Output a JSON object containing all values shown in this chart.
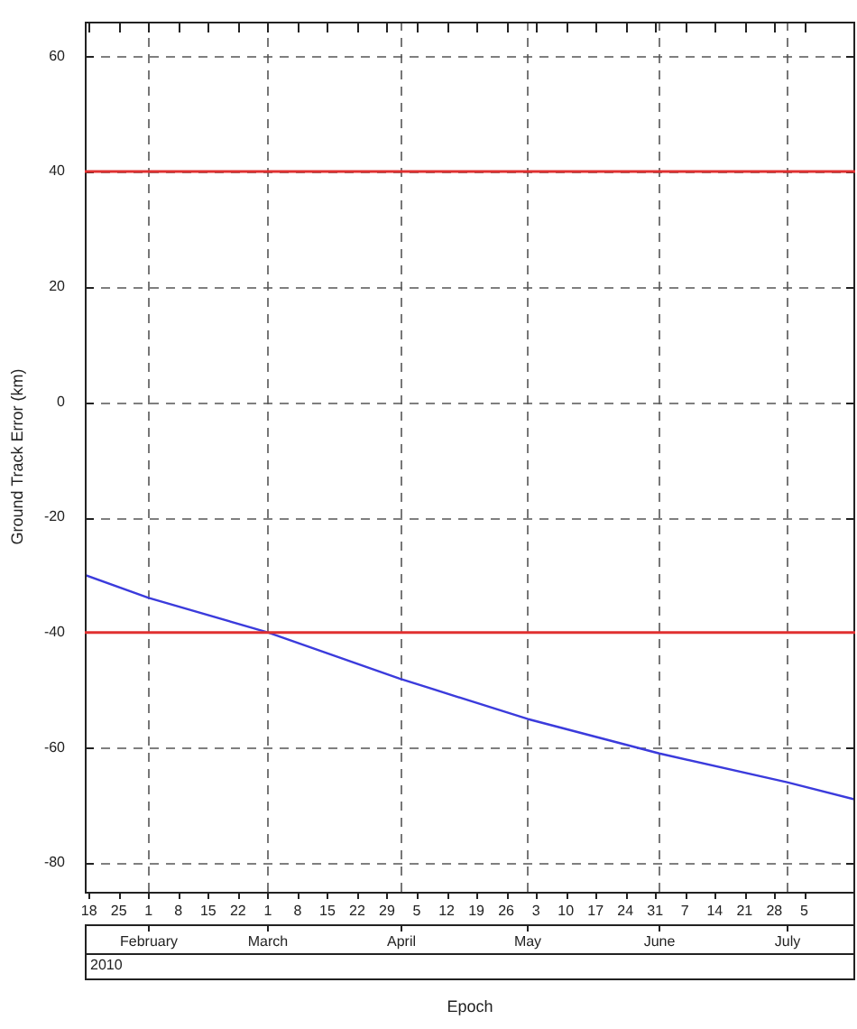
{
  "chart_data": {
    "type": "line",
    "xlabel": "Epoch",
    "ylabel": "Ground Track Error (km)",
    "x": [
      "2010-01-17",
      "2010-02-01",
      "2010-03-01",
      "2010-04-01",
      "2010-05-01",
      "2010-06-01",
      "2010-07-01",
      "2010-07-17"
    ],
    "series": [
      {
        "color": "#3b3bdc",
        "values": [
          -30,
          -34,
          -40,
          -48,
          -55,
          -61,
          -66,
          -69
        ]
      }
    ],
    "xlim": [
      "2010-01-17",
      "2010-07-17"
    ],
    "xticks": [
      {
        "value": "2010-01-18",
        "label": "18"
      },
      {
        "value": "2010-01-25",
        "label": "25"
      },
      {
        "value": "2010-02-01",
        "label": "1"
      },
      {
        "value": "2010-02-08",
        "label": "8"
      },
      {
        "value": "2010-02-15",
        "label": "15"
      },
      {
        "value": "2010-02-22",
        "label": "22"
      },
      {
        "value": "2010-03-01",
        "label": "1"
      },
      {
        "value": "2010-03-08",
        "label": "8"
      },
      {
        "value": "2010-03-15",
        "label": "15"
      },
      {
        "value": "2010-03-22",
        "label": "22"
      },
      {
        "value": "2010-03-29",
        "label": "29"
      },
      {
        "value": "2010-04-05",
        "label": "5"
      },
      {
        "value": "2010-04-12",
        "label": "12"
      },
      {
        "value": "2010-04-19",
        "label": "19"
      },
      {
        "value": "2010-04-26",
        "label": "26"
      },
      {
        "value": "2010-05-03",
        "label": "3"
      },
      {
        "value": "2010-05-10",
        "label": "10"
      },
      {
        "value": "2010-05-17",
        "label": "17"
      },
      {
        "value": "2010-05-24",
        "label": "24"
      },
      {
        "value": "2010-05-31",
        "label": "31"
      },
      {
        "value": "2010-06-07",
        "label": "7"
      },
      {
        "value": "2010-06-14",
        "label": "14"
      },
      {
        "value": "2010-06-21",
        "label": "21"
      },
      {
        "value": "2010-06-28",
        "label": "28"
      },
      {
        "value": "2010-07-05",
        "label": "5"
      }
    ],
    "x2lim": [
      "2010-01-17",
      "2010-07-17"
    ],
    "x2ticks": [
      {
        "value": "2010-02-01",
        "label": "February"
      },
      {
        "value": "2010-03-01",
        "label": "March"
      },
      {
        "value": "2010-04-01",
        "label": "April"
      },
      {
        "value": "2010-05-01",
        "label": "May"
      },
      {
        "value": "2010-06-01",
        "label": "June"
      },
      {
        "value": "2010-07-01",
        "label": "July"
      }
    ],
    "ylim": [
      -85,
      66
    ],
    "yticks": [
      -80,
      -60,
      -40,
      -20,
      0,
      20,
      40,
      60
    ],
    "ref_lines": [
      {
        "axis": "y",
        "value": 40,
        "color": "#e03030"
      },
      {
        "axis": "y",
        "value": -40,
        "color": "#e03030"
      }
    ],
    "annotations": [
      "2010"
    ],
    "grid": true,
    "legend": false,
    "marker": "none",
    "line_style": "solid"
  }
}
